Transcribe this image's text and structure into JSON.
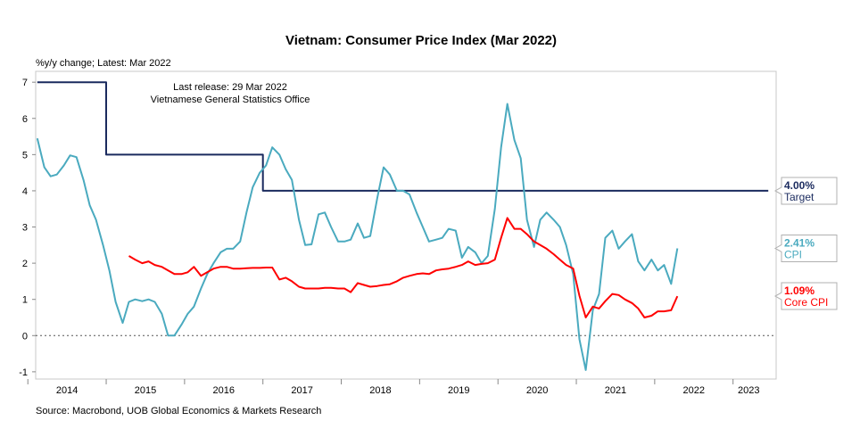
{
  "chart_data": {
    "type": "line",
    "title": "Vietnam: Consumer Price Index (Mar 2022)",
    "subtitle": "%y/y change; Latest: Mar 2022",
    "annotation": [
      "Last release: 29 Mar 2022",
      "Vietnamese General Statistics Office"
    ],
    "source": "Source: Macrobond, UOB Global Economics & Markets Research",
    "ylim": [
      -1.2,
      7.3
    ],
    "yticks": [
      -1,
      0,
      1,
      2,
      3,
      4,
      5,
      6,
      7
    ],
    "xlim": [
      2013.6,
      2023.05
    ],
    "year_labels": [
      {
        "label": "2014",
        "x": 2014.0
      },
      {
        "label": "2015",
        "x": 2015.0
      },
      {
        "label": "2016",
        "x": 2016.0
      },
      {
        "label": "2017",
        "x": 2017.0
      },
      {
        "label": "2018",
        "x": 2018.0
      },
      {
        "label": "2019",
        "x": 2019.0
      },
      {
        "label": "2020",
        "x": 2020.0
      },
      {
        "label": "2021",
        "x": 2021.0
      },
      {
        "label": "2022",
        "x": 2022.0
      },
      {
        "label": "2023",
        "x": 2022.7
      }
    ],
    "zero_line": "dotted",
    "series": [
      {
        "name": "Target",
        "color": "#1a2a5e",
        "step": true,
        "points": [
          [
            2013.62,
            7
          ],
          [
            2014.5,
            7
          ],
          [
            2014.5,
            5
          ],
          [
            2016.5,
            5
          ],
          [
            2016.5,
            4
          ],
          [
            2022.95,
            4
          ]
        ]
      },
      {
        "name": "CPI",
        "color": "#4aaabf",
        "points": [
          [
            2013.62,
            5.45
          ],
          [
            2013.71,
            4.65
          ],
          [
            2013.79,
            4.4
          ],
          [
            2013.87,
            4.45
          ],
          [
            2013.96,
            4.7
          ],
          [
            2014.04,
            4.98
          ],
          [
            2014.12,
            4.93
          ],
          [
            2014.21,
            4.3
          ],
          [
            2014.29,
            3.6
          ],
          [
            2014.37,
            3.2
          ],
          [
            2014.46,
            2.5
          ],
          [
            2014.54,
            1.8
          ],
          [
            2014.62,
            0.93
          ],
          [
            2014.71,
            0.35
          ],
          [
            2014.79,
            0.93
          ],
          [
            2014.87,
            1.0
          ],
          [
            2014.96,
            0.95
          ],
          [
            2015.04,
            1.0
          ],
          [
            2015.12,
            0.93
          ],
          [
            2015.21,
            0.6
          ],
          [
            2015.29,
            0.0
          ],
          [
            2015.37,
            0.0
          ],
          [
            2015.46,
            0.3
          ],
          [
            2015.54,
            0.6
          ],
          [
            2015.62,
            0.8
          ],
          [
            2015.71,
            1.3
          ],
          [
            2015.79,
            1.7
          ],
          [
            2015.87,
            2.0
          ],
          [
            2015.96,
            2.3
          ],
          [
            2016.04,
            2.4
          ],
          [
            2016.12,
            2.4
          ],
          [
            2016.21,
            2.6
          ],
          [
            2016.29,
            3.4
          ],
          [
            2016.37,
            4.1
          ],
          [
            2016.46,
            4.5
          ],
          [
            2016.54,
            4.7
          ],
          [
            2016.62,
            5.2
          ],
          [
            2016.71,
            5.0
          ],
          [
            2016.79,
            4.6
          ],
          [
            2016.87,
            4.3
          ],
          [
            2016.96,
            3.2
          ],
          [
            2017.04,
            2.5
          ],
          [
            2017.12,
            2.52
          ],
          [
            2017.21,
            3.35
          ],
          [
            2017.29,
            3.4
          ],
          [
            2017.37,
            3.0
          ],
          [
            2017.46,
            2.6
          ],
          [
            2017.54,
            2.6
          ],
          [
            2017.62,
            2.65
          ],
          [
            2017.71,
            3.1
          ],
          [
            2017.79,
            2.7
          ],
          [
            2017.87,
            2.75
          ],
          [
            2017.96,
            3.8
          ],
          [
            2018.04,
            4.65
          ],
          [
            2018.12,
            4.45
          ],
          [
            2018.21,
            4.0
          ],
          [
            2018.29,
            4.0
          ],
          [
            2018.37,
            3.9
          ],
          [
            2018.46,
            3.4
          ],
          [
            2018.54,
            3.0
          ],
          [
            2018.62,
            2.6
          ],
          [
            2018.71,
            2.65
          ],
          [
            2018.79,
            2.7
          ],
          [
            2018.87,
            2.95
          ],
          [
            2018.96,
            2.9
          ],
          [
            2019.04,
            2.15
          ],
          [
            2019.12,
            2.45
          ],
          [
            2019.21,
            2.3
          ],
          [
            2019.29,
            2.0
          ],
          [
            2019.37,
            2.2
          ],
          [
            2019.46,
            3.5
          ],
          [
            2019.54,
            5.2
          ],
          [
            2019.62,
            6.4
          ],
          [
            2019.71,
            5.4
          ],
          [
            2019.79,
            4.9
          ],
          [
            2019.87,
            3.2
          ],
          [
            2019.96,
            2.45
          ],
          [
            2020.04,
            3.2
          ],
          [
            2020.12,
            3.4
          ],
          [
            2020.21,
            3.2
          ],
          [
            2020.29,
            3.0
          ],
          [
            2020.37,
            2.5
          ],
          [
            2020.46,
            1.7
          ],
          [
            2020.54,
            -0.1
          ],
          [
            2020.62,
            -0.95
          ],
          [
            2020.71,
            0.7
          ],
          [
            2020.79,
            1.15
          ],
          [
            2020.87,
            2.7
          ],
          [
            2020.96,
            2.9
          ],
          [
            2021.04,
            2.4
          ],
          [
            2021.12,
            2.6
          ],
          [
            2021.21,
            2.8
          ],
          [
            2021.29,
            2.05
          ],
          [
            2021.37,
            1.8
          ],
          [
            2021.46,
            2.1
          ],
          [
            2021.54,
            1.8
          ],
          [
            2021.62,
            1.95
          ],
          [
            2021.71,
            1.43
          ],
          [
            2021.79,
            2.41
          ]
        ]
      },
      {
        "name": "Core CPI",
        "color": "#ff0000",
        "points": [
          [
            2014.79,
            2.2
          ],
          [
            2014.87,
            2.1
          ],
          [
            2014.96,
            2.0
          ],
          [
            2015.04,
            2.05
          ],
          [
            2015.12,
            1.95
          ],
          [
            2015.21,
            1.9
          ],
          [
            2015.29,
            1.8
          ],
          [
            2015.37,
            1.7
          ],
          [
            2015.46,
            1.7
          ],
          [
            2015.54,
            1.75
          ],
          [
            2015.62,
            1.9
          ],
          [
            2015.71,
            1.65
          ],
          [
            2015.79,
            1.75
          ],
          [
            2015.87,
            1.85
          ],
          [
            2015.96,
            1.9
          ],
          [
            2016.04,
            1.9
          ],
          [
            2016.12,
            1.85
          ],
          [
            2016.21,
            1.85
          ],
          [
            2016.29,
            1.86
          ],
          [
            2016.37,
            1.87
          ],
          [
            2016.46,
            1.87
          ],
          [
            2016.54,
            1.88
          ],
          [
            2016.62,
            1.88
          ],
          [
            2016.71,
            1.55
          ],
          [
            2016.79,
            1.6
          ],
          [
            2016.87,
            1.5
          ],
          [
            2016.96,
            1.35
          ],
          [
            2017.04,
            1.3
          ],
          [
            2017.12,
            1.3
          ],
          [
            2017.21,
            1.3
          ],
          [
            2017.29,
            1.32
          ],
          [
            2017.37,
            1.32
          ],
          [
            2017.46,
            1.3
          ],
          [
            2017.54,
            1.3
          ],
          [
            2017.62,
            1.2
          ],
          [
            2017.71,
            1.45
          ],
          [
            2017.79,
            1.4
          ],
          [
            2017.87,
            1.35
          ],
          [
            2017.96,
            1.37
          ],
          [
            2018.04,
            1.4
          ],
          [
            2018.12,
            1.42
          ],
          [
            2018.21,
            1.5
          ],
          [
            2018.29,
            1.6
          ],
          [
            2018.37,
            1.65
          ],
          [
            2018.46,
            1.7
          ],
          [
            2018.54,
            1.72
          ],
          [
            2018.62,
            1.7
          ],
          [
            2018.71,
            1.8
          ],
          [
            2018.79,
            1.83
          ],
          [
            2018.87,
            1.85
          ],
          [
            2018.96,
            1.9
          ],
          [
            2019.04,
            1.95
          ],
          [
            2019.12,
            2.05
          ],
          [
            2019.21,
            1.95
          ],
          [
            2019.29,
            1.98
          ],
          [
            2019.37,
            2.0
          ],
          [
            2019.46,
            2.1
          ],
          [
            2019.54,
            2.7
          ],
          [
            2019.62,
            3.25
          ],
          [
            2019.71,
            2.95
          ],
          [
            2019.79,
            2.95
          ],
          [
            2019.87,
            2.8
          ],
          [
            2019.96,
            2.6
          ],
          [
            2020.04,
            2.5
          ],
          [
            2020.12,
            2.4
          ],
          [
            2020.21,
            2.25
          ],
          [
            2020.29,
            2.1
          ],
          [
            2020.37,
            1.95
          ],
          [
            2020.46,
            1.85
          ],
          [
            2020.54,
            1.1
          ],
          [
            2020.62,
            0.5
          ],
          [
            2020.71,
            0.8
          ],
          [
            2020.79,
            0.75
          ],
          [
            2020.87,
            0.95
          ],
          [
            2020.96,
            1.15
          ],
          [
            2021.04,
            1.12
          ],
          [
            2021.12,
            1.0
          ],
          [
            2021.21,
            0.9
          ],
          [
            2021.29,
            0.75
          ],
          [
            2021.37,
            0.5
          ],
          [
            2021.46,
            0.55
          ],
          [
            2021.54,
            0.67
          ],
          [
            2021.62,
            0.67
          ],
          [
            2021.71,
            0.7
          ],
          [
            2021.79,
            1.09
          ]
        ]
      }
    ],
    "end_labels": [
      {
        "value_text": "4.00%",
        "name": "Target",
        "color": "#1a2a5e",
        "y": 4.0
      },
      {
        "value_text": "2.41%",
        "name": "CPI",
        "color": "#4aaabf",
        "y": 2.41
      },
      {
        "value_text": "1.09%",
        "name": "Core CPI",
        "color": "#ff0000",
        "y": 1.09
      }
    ]
  }
}
